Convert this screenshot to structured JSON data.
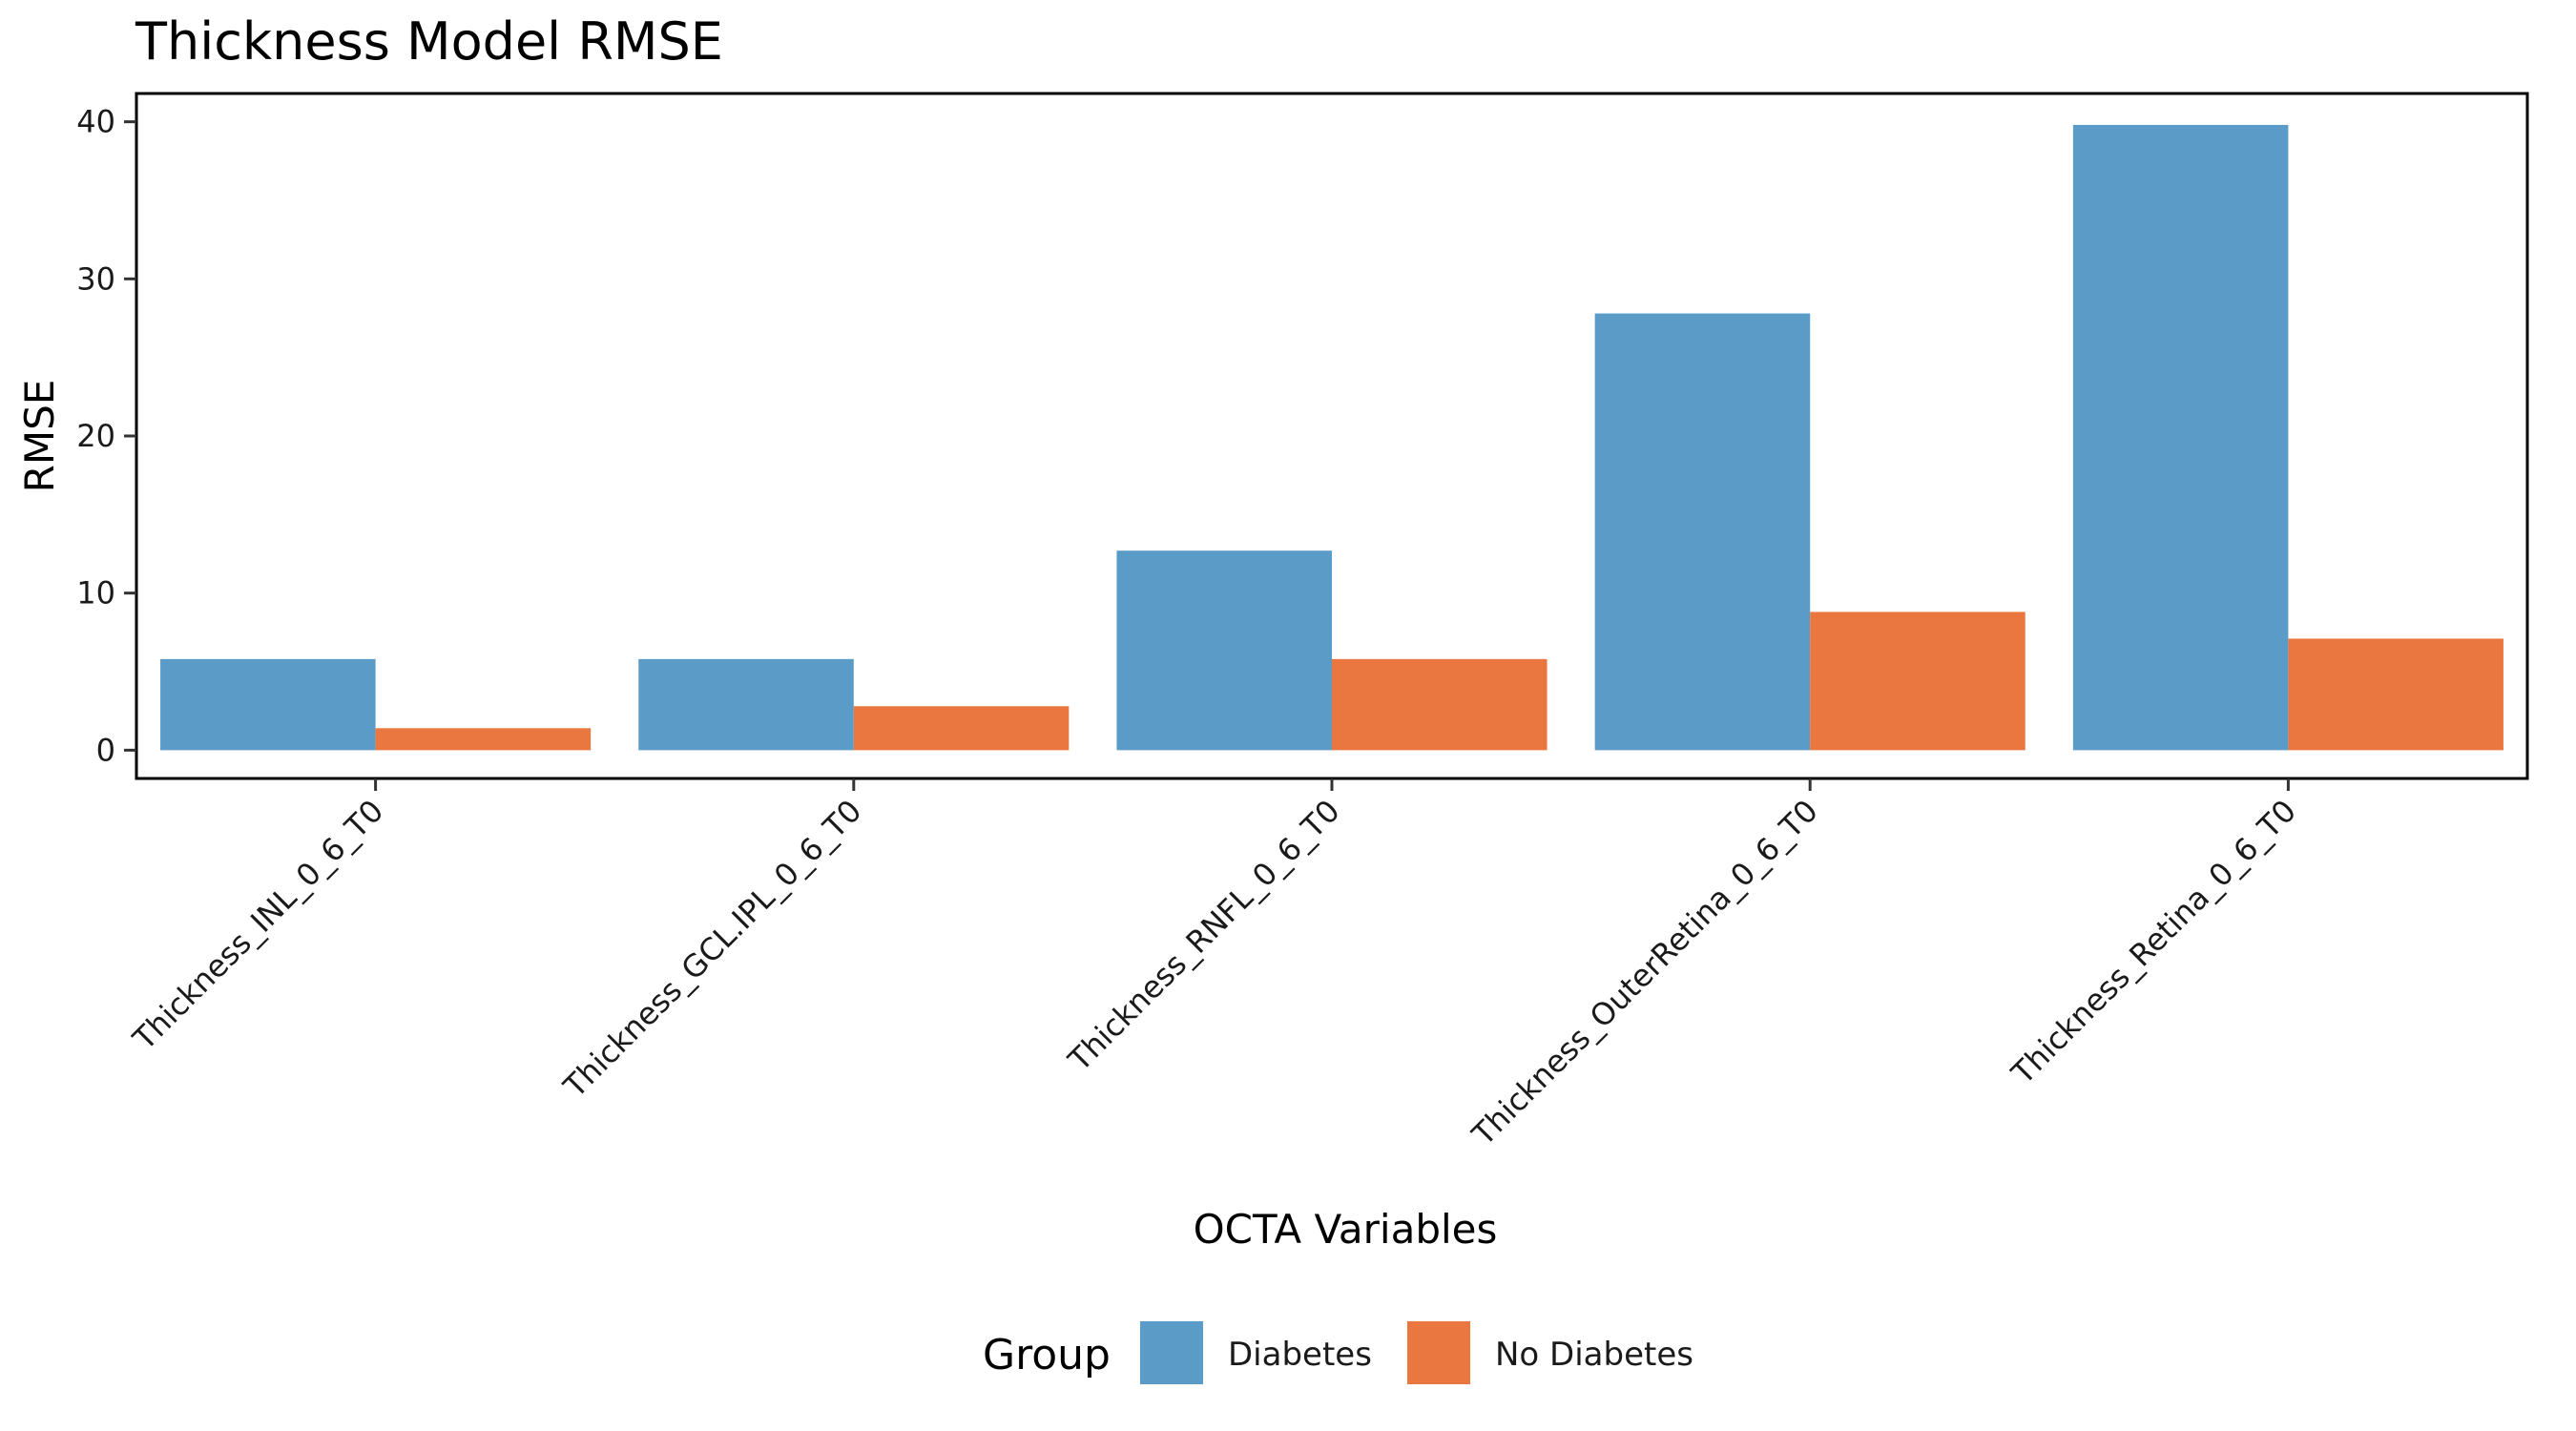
{
  "chart_data": {
    "type": "bar",
    "title": "Thickness Model RMSE",
    "xlabel": "OCTA Variables",
    "ylabel": "RMSE",
    "categories": [
      "Thickness_INL_0_6_T0",
      "Thickness_GCL.IPL_0_6_T0",
      "Thickness_RNFL_0_6_T0",
      "Thickness_OuterRetina_0_6_T0",
      "Thickness_Retina_0_6_T0"
    ],
    "series": [
      {
        "name": "Diabetes",
        "color": "#5B9BC8",
        "values": [
          5.8,
          5.8,
          12.7,
          27.8,
          39.8
        ]
      },
      {
        "name": "No Diabetes",
        "color": "#EA773F",
        "values": [
          1.4,
          2.8,
          5.8,
          8.8,
          7.1
        ]
      }
    ],
    "ylim": [
      -1.8,
      41.8
    ],
    "yticks": [
      0,
      10,
      20,
      30,
      40
    ],
    "grid": false,
    "legend": {
      "title": "Group",
      "position": "bottom"
    }
  }
}
